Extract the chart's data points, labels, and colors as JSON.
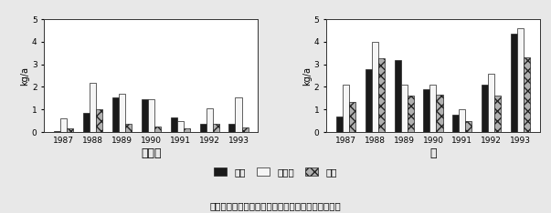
{
  "years": [
    "1987",
    "1988",
    "1989",
    "1990",
    "1991",
    "1992",
    "1993"
  ],
  "mikan": {
    "seiko": [
      0.05,
      0.85,
      1.55,
      1.45,
      0.65,
      0.35,
      0.35
    ],
    "shikiwara": [
      0.6,
      2.2,
      1.7,
      1.45,
      0.5,
      1.05,
      1.55
    ],
    "sosei": [
      0.15,
      1.0,
      0.35,
      0.25,
      0.15,
      0.35,
      0.2
    ]
  },
  "cha": {
    "seiko": [
      0.7,
      2.8,
      3.2,
      1.9,
      0.75,
      2.1,
      4.35
    ],
    "shikiwara": [
      2.1,
      4.0,
      2.1,
      2.1,
      1.0,
      2.6,
      4.6
    ],
    "sosei": [
      1.35,
      3.25,
      1.6,
      1.65,
      0.5,
      1.6,
      3.3
    ]
  },
  "ylim": [
    0,
    5
  ],
  "yticks": [
    0,
    1,
    2,
    3,
    4,
    5
  ],
  "ylabel": "kg/a",
  "xlabel_mikan": "ミカン",
  "xlabel_cha": "茶",
  "legend_labels": [
    "清耕",
    "敜ワラ",
    "草生"
  ],
  "caption": "図２　浸透水による窒素流出量の推移（ｋｇ／ａ）",
  "bar_width": 0.22,
  "bg_color": "#e8e8e8"
}
